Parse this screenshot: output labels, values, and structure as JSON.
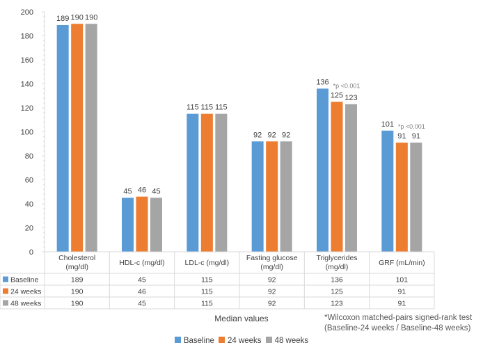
{
  "chart_data": {
    "type": "bar",
    "title": "",
    "xlabel": "Median values",
    "ylabel": "",
    "ylim": [
      0,
      200
    ],
    "yticks": [
      0,
      20,
      40,
      60,
      80,
      100,
      120,
      140,
      160,
      180,
      200
    ],
    "grid": false,
    "categories": [
      [
        "Cholesterol",
        "(mg/dl)"
      ],
      [
        "HDL-c (mg/dl)"
      ],
      [
        "LDL-c  (mg/dl)"
      ],
      [
        "Fasting glucose",
        "(mg/dl)"
      ],
      [
        "Triglycerides",
        "(mg/dl)"
      ],
      [
        "GRF (mL/min)"
      ]
    ],
    "series": [
      {
        "name": "Baseline",
        "color": "#5b9bd5",
        "values": [
          189,
          45,
          115,
          92,
          136,
          101
        ]
      },
      {
        "name": "24 weeks",
        "color": "#ed7d31",
        "values": [
          190,
          46,
          115,
          92,
          125,
          91
        ]
      },
      {
        "name": "48 weeks",
        "color": "#a5a5a5",
        "values": [
          190,
          45,
          115,
          92,
          123,
          91
        ]
      }
    ],
    "annotations": [
      {
        "category_index": 4,
        "text": "*p <0.001"
      },
      {
        "category_index": 5,
        "text": "*p <0.001"
      }
    ],
    "data_table": true,
    "legend_position": "bottom",
    "footnote": "*Wilcoxon matched-pairs signed-rank test (Baseline-24 weeks / Baseline-48 weeks)"
  }
}
